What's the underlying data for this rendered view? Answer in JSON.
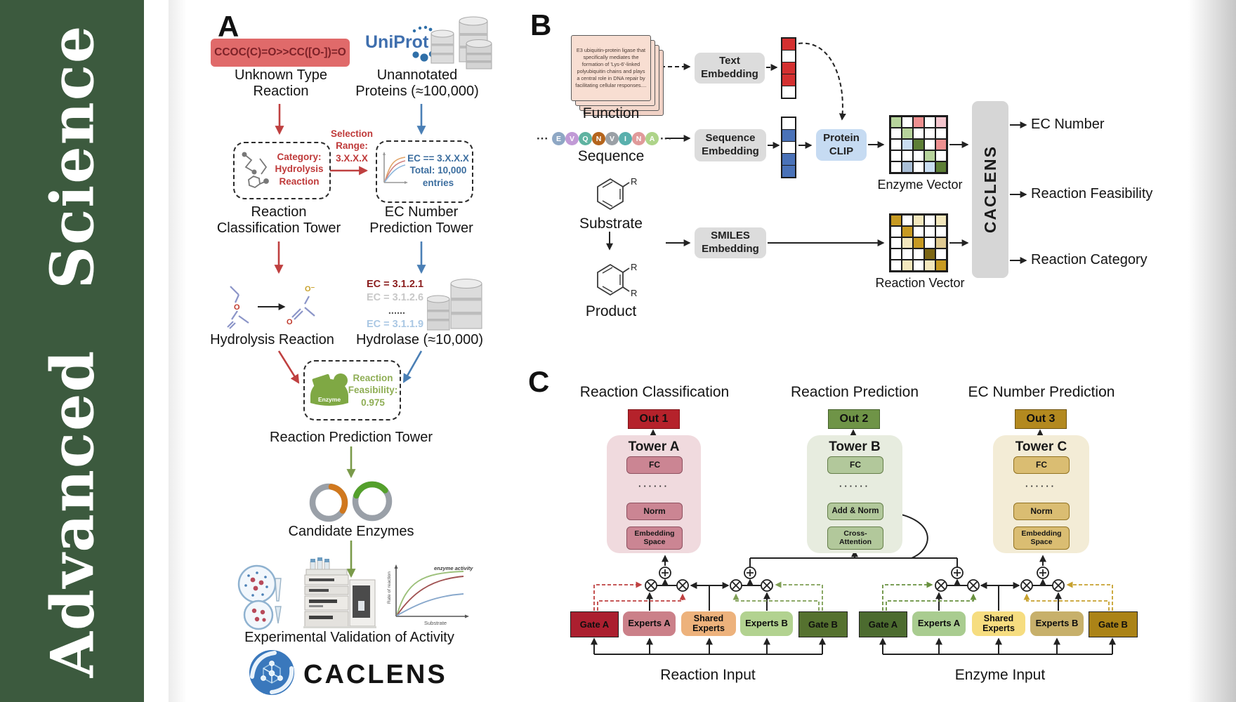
{
  "colors": {
    "sidebar_green": "#3c5a3e",
    "figure_red": "#bf4040",
    "figure_blue": "#4a7fb5",
    "figure_green": "#7a9a4a",
    "smiles_box_bg": "#e06a6a",
    "smiles_text": "#7d2228",
    "uniprot_blue": "#3f6fae",
    "out1_bg": "#b5222b",
    "out2_bg": "#6f9447",
    "out3_bg": "#b3891f",
    "tower_a_bg": "#f0dade",
    "tower_b_bg": "#e7ecdf",
    "tower_c_bg": "#f3ecd6",
    "gate_a_reaction": "#ab1f2f",
    "gate_b_reaction": "#55712f",
    "shared_reaction": "#edb27c",
    "gate_a_enzyme": "#4c6b2f",
    "gate_b_enzyme": "#ab8317",
    "shared_enzyme": "#f6dd80"
  },
  "sidebar": {
    "title": "Advanced  Science"
  },
  "panelA": {
    "label": "A",
    "smiles": "CCOC(C)=O>>CC([O-])=O",
    "unknown_type": "Unknown Type\nReaction",
    "uniprot": "UniProt",
    "unannotated": "Unannotated\nProteins (≈100,000)",
    "category_box": "Category:\nHydrolysis\nReaction",
    "selection": "Selection\nRange:\n3.X.X.X",
    "ec_box": "EC == 3.X.X.X\nTotal: 10,000\nentries",
    "classification_tower": "Reaction\nClassification Tower",
    "ec_tower": "EC Number\nPrediction Tower",
    "hydrolysis_reaction": "Hydrolysis Reaction",
    "ec_entries": [
      {
        "text": "EC = 3.1.2.1",
        "color": "#8b1f1f"
      },
      {
        "text": "EC = 3.1.2.6",
        "color": "#c8c8c8"
      },
      {
        "text": "......",
        "color": "#5a5a5a"
      },
      {
        "text": "EC = 3.1.1.9",
        "color": "#abc8e4"
      }
    ],
    "hydrolase": "Hydrolase (≈10,000)",
    "enzyme_badge": "Enzyme",
    "feasibility": "Reaction\nFeasibility:\n0.975",
    "prediction_tower": "Reaction Prediction Tower",
    "candidate_enzymes": "Candidate Enzymes",
    "mini_chart": {
      "annotation": "enzyme activity",
      "ylabel": "Rate of reaction",
      "xlabel": "Substrate"
    },
    "validation": "Experimental Validation of Activity",
    "logo_text": "CACLENS"
  },
  "panelB": {
    "label": "B",
    "function_card": "E3 ubiquitin-protein ligase that specifically mediates the formation of 'Lys-6'-linked polyubiquitin chains and plays a central role in DNA repair by facilitating cellular responses....",
    "function_label": "Function",
    "ellipsis": "···",
    "sequence_tokens": [
      {
        "ch": "E",
        "color": "#8ea7c4"
      },
      {
        "ch": "V",
        "color": "#c19ad6"
      },
      {
        "ch": "Q",
        "color": "#5fb3a1"
      },
      {
        "ch": "N",
        "color": "#b5651d"
      },
      {
        "ch": "V",
        "color": "#9aa0a6"
      },
      {
        "ch": "I",
        "color": "#59b0ad"
      },
      {
        "ch": "N",
        "color": "#e09a9a"
      },
      {
        "ch": "A",
        "color": "#aed489"
      }
    ],
    "sequence_label": "Sequence",
    "substrate_label": "Substrate",
    "product_label": "Product",
    "r_group": "R",
    "text_embedding": "Text\nEmbedding",
    "sequence_embedding": "Sequence\nEmbedding",
    "smiles_embedding": "SMILES\nEmbedding",
    "protein_clip": "Protein\nCLIP",
    "enzyme_vector_label": "Enzyme Vector",
    "reaction_vector_label": "Reaction Vector",
    "caclens": "CACLENS",
    "outputs": [
      "EC Number",
      "Reaction Feasibility",
      "Reaction Category"
    ],
    "text_vector": [
      "R",
      "W",
      "R",
      "R",
      "W"
    ],
    "sequence_vector": [
      "W",
      "B",
      "W",
      "B",
      "B"
    ],
    "enzyme_matrix": [
      [
        "G",
        "W",
        "S",
        "W",
        "P"
      ],
      [
        "W",
        "G",
        "W",
        "W",
        "W"
      ],
      [
        "W",
        "L",
        "g",
        "W",
        "S"
      ],
      [
        "W",
        "W",
        "W",
        "G",
        "W"
      ],
      [
        "W",
        "b",
        "W",
        "L",
        "g"
      ]
    ],
    "reaction_matrix": [
      [
        "Y",
        "W",
        "y",
        "W",
        "y"
      ],
      [
        "W",
        "Y",
        "W",
        "W",
        "W"
      ],
      [
        "W",
        "y",
        "Y",
        "W",
        "t"
      ],
      [
        "W",
        "W",
        "W",
        "O",
        "W"
      ],
      [
        "W",
        "y",
        "W",
        "y",
        "Y"
      ]
    ],
    "palette": {
      "W": "#ffffff",
      "R": "#d43030",
      "B": "#4a72b8",
      "G": "#b7d49c",
      "g": "#5d7f36",
      "S": "#ee9090",
      "P": "#f4c6ce",
      "L": "#c9ddf1",
      "b": "#aabfd6",
      "Y": "#c79a22",
      "y": "#f3e7bd",
      "O": "#7c6614",
      "t": "#dfca92"
    }
  },
  "panelC": {
    "label": "C",
    "columns": [
      {
        "title": "Reaction Classification",
        "out": "Out 1",
        "tower": "Tower A",
        "fc": "FC",
        "mid": "Norm",
        "bottom": "Embedding\nSpace"
      },
      {
        "title": "Reaction Prediction",
        "out": "Out 2",
        "tower": "Tower B",
        "fc": "FC",
        "mid": "Add & Norm",
        "bottom": "Cross-\nAttention"
      },
      {
        "title": "EC Number Prediction",
        "out": "Out 3",
        "tower": "Tower C",
        "fc": "FC",
        "mid": "Norm",
        "bottom": "Embedding\nSpace"
      }
    ],
    "dots": "······",
    "groups": [
      {
        "input": "Reaction Input",
        "gate_a": "Gate A",
        "experts_a": "Experts A",
        "shared": "Shared\nExperts",
        "experts_b": "Experts B",
        "gate_b": "Gate B"
      },
      {
        "input": "Enzyme Input",
        "gate_a": "Gate A",
        "experts_a": "Experts A",
        "shared": "Shared\nExperts",
        "experts_b": "Experts B",
        "gate_b": "Gate B"
      }
    ]
  }
}
